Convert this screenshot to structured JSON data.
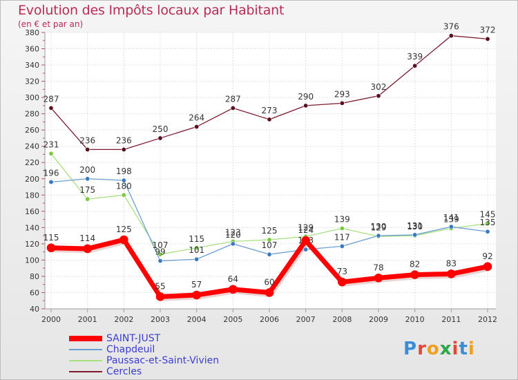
{
  "title": "Evolution des Impôts locaux par Habitant",
  "subtitle": "(en € et par an)",
  "logo": {
    "text": "Proxiti",
    "colors": [
      "#3a8ed8",
      "#e0483a",
      "#f0a020",
      "#2aa84a",
      "#e0483a",
      "#3a8ed8",
      "#f0a020"
    ]
  },
  "chart_data": {
    "type": "line",
    "title": "Evolution des Impôts locaux par Habitant",
    "subtitle": "(en € et par an)",
    "xlabel": "",
    "ylabel": "",
    "ylim": [
      40,
      380
    ],
    "yticks": [
      40,
      60,
      80,
      100,
      120,
      140,
      160,
      180,
      200,
      220,
      240,
      260,
      280,
      300,
      320,
      340,
      360,
      380
    ],
    "grid": true,
    "legend_position": "bottom-left",
    "x": [
      "2000",
      "2001",
      "2002",
      "2003",
      "2004",
      "2005",
      "2006",
      "2007",
      "2008",
      "2009",
      "2010",
      "2011",
      "2012"
    ],
    "series": [
      {
        "name": "Cercles",
        "color": "#7a1a2a",
        "marker": "#5a1020",
        "width": 1.3,
        "values": [
          287,
          236,
          236,
          250,
          264,
          287,
          273,
          290,
          293,
          302,
          339,
          376,
          372
        ]
      },
      {
        "name": "Paussac-et-Saint-Vivien",
        "color": "#a8e080",
        "marker": "#7cc842",
        "width": 1.3,
        "values": [
          231,
          175,
          180,
          107,
          115,
          123,
          125,
          129,
          139,
          129,
          130,
          139,
          145
        ]
      },
      {
        "name": "Chapdeuil",
        "color": "#6a9ed0",
        "marker": "#3a78c0",
        "width": 1.3,
        "values": [
          196,
          200,
          198,
          99,
          101,
          120,
          107,
          113,
          117,
          130,
          131,
          141,
          135
        ]
      },
      {
        "name": "SAINT-JUST",
        "color": "#ff0000",
        "marker": "#ff0000",
        "width": 7,
        "values": [
          115,
          114,
          125,
          55,
          57,
          64,
          60,
          124,
          73,
          78,
          82,
          83,
          92
        ]
      }
    ],
    "legend": [
      "SAINT-JUST",
      "Chapdeuil",
      "Paussac-et-Saint-Vivien",
      "Cercles"
    ]
  }
}
